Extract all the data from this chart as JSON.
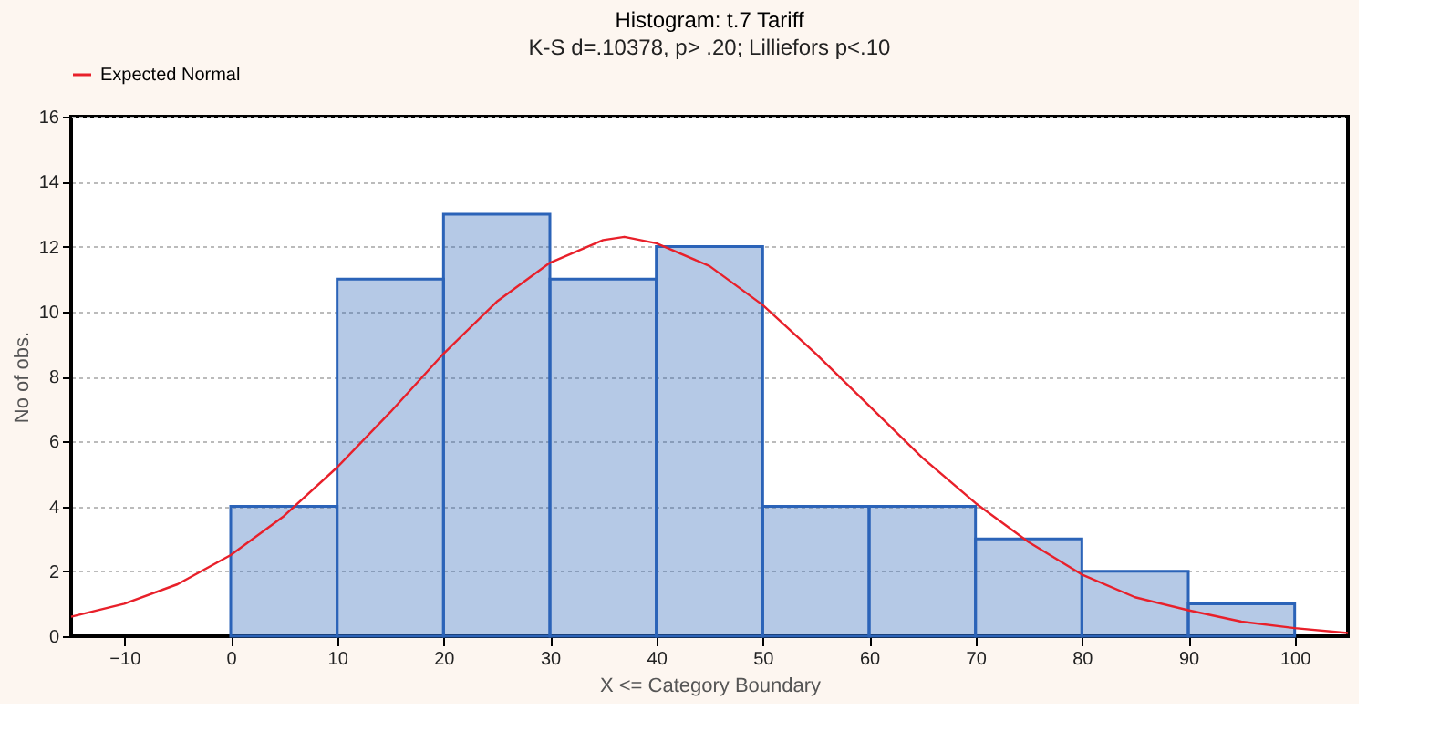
{
  "chart_data": {
    "type": "histogram",
    "title": "Histogram: t.7 Tariff",
    "subtitle": "K-S d=.10378, p> .20; Lilliefors p<.10",
    "xlabel": "X <= Category Boundary",
    "ylabel": "No of obs.",
    "bins": [
      0,
      10,
      20,
      30,
      40,
      50,
      60,
      70,
      80,
      90,
      100
    ],
    "values": [
      4,
      11,
      13,
      11,
      12,
      4,
      4,
      3,
      2,
      1
    ],
    "color": "#2b63b8",
    "series": [
      {
        "name": "Expected Normal",
        "type": "line",
        "color": "#e8202a",
        "x": [
          -15,
          -10,
          -5,
          0,
          5,
          10,
          15,
          20,
          25,
          30,
          35,
          37,
          40,
          45,
          50,
          55,
          60,
          65,
          70,
          75,
          80,
          85,
          90,
          95,
          100,
          105
        ],
        "values": [
          0.6,
          1.0,
          1.6,
          2.5,
          3.7,
          5.2,
          6.9,
          8.7,
          10.3,
          11.5,
          12.2,
          12.3,
          12.1,
          11.4,
          10.2,
          8.7,
          7.1,
          5.5,
          4.1,
          2.9,
          1.9,
          1.2,
          0.8,
          0.45,
          0.25,
          0.1
        ]
      }
    ],
    "xlim": [
      -15,
      105
    ],
    "xticks": [
      -10,
      0,
      10,
      20,
      30,
      40,
      50,
      60,
      70,
      80,
      90,
      100
    ],
    "ylim": [
      0,
      16
    ],
    "yticks": [
      0,
      2,
      4,
      6,
      8,
      10,
      12,
      14,
      16
    ],
    "grid": "y",
    "legend": "top"
  }
}
